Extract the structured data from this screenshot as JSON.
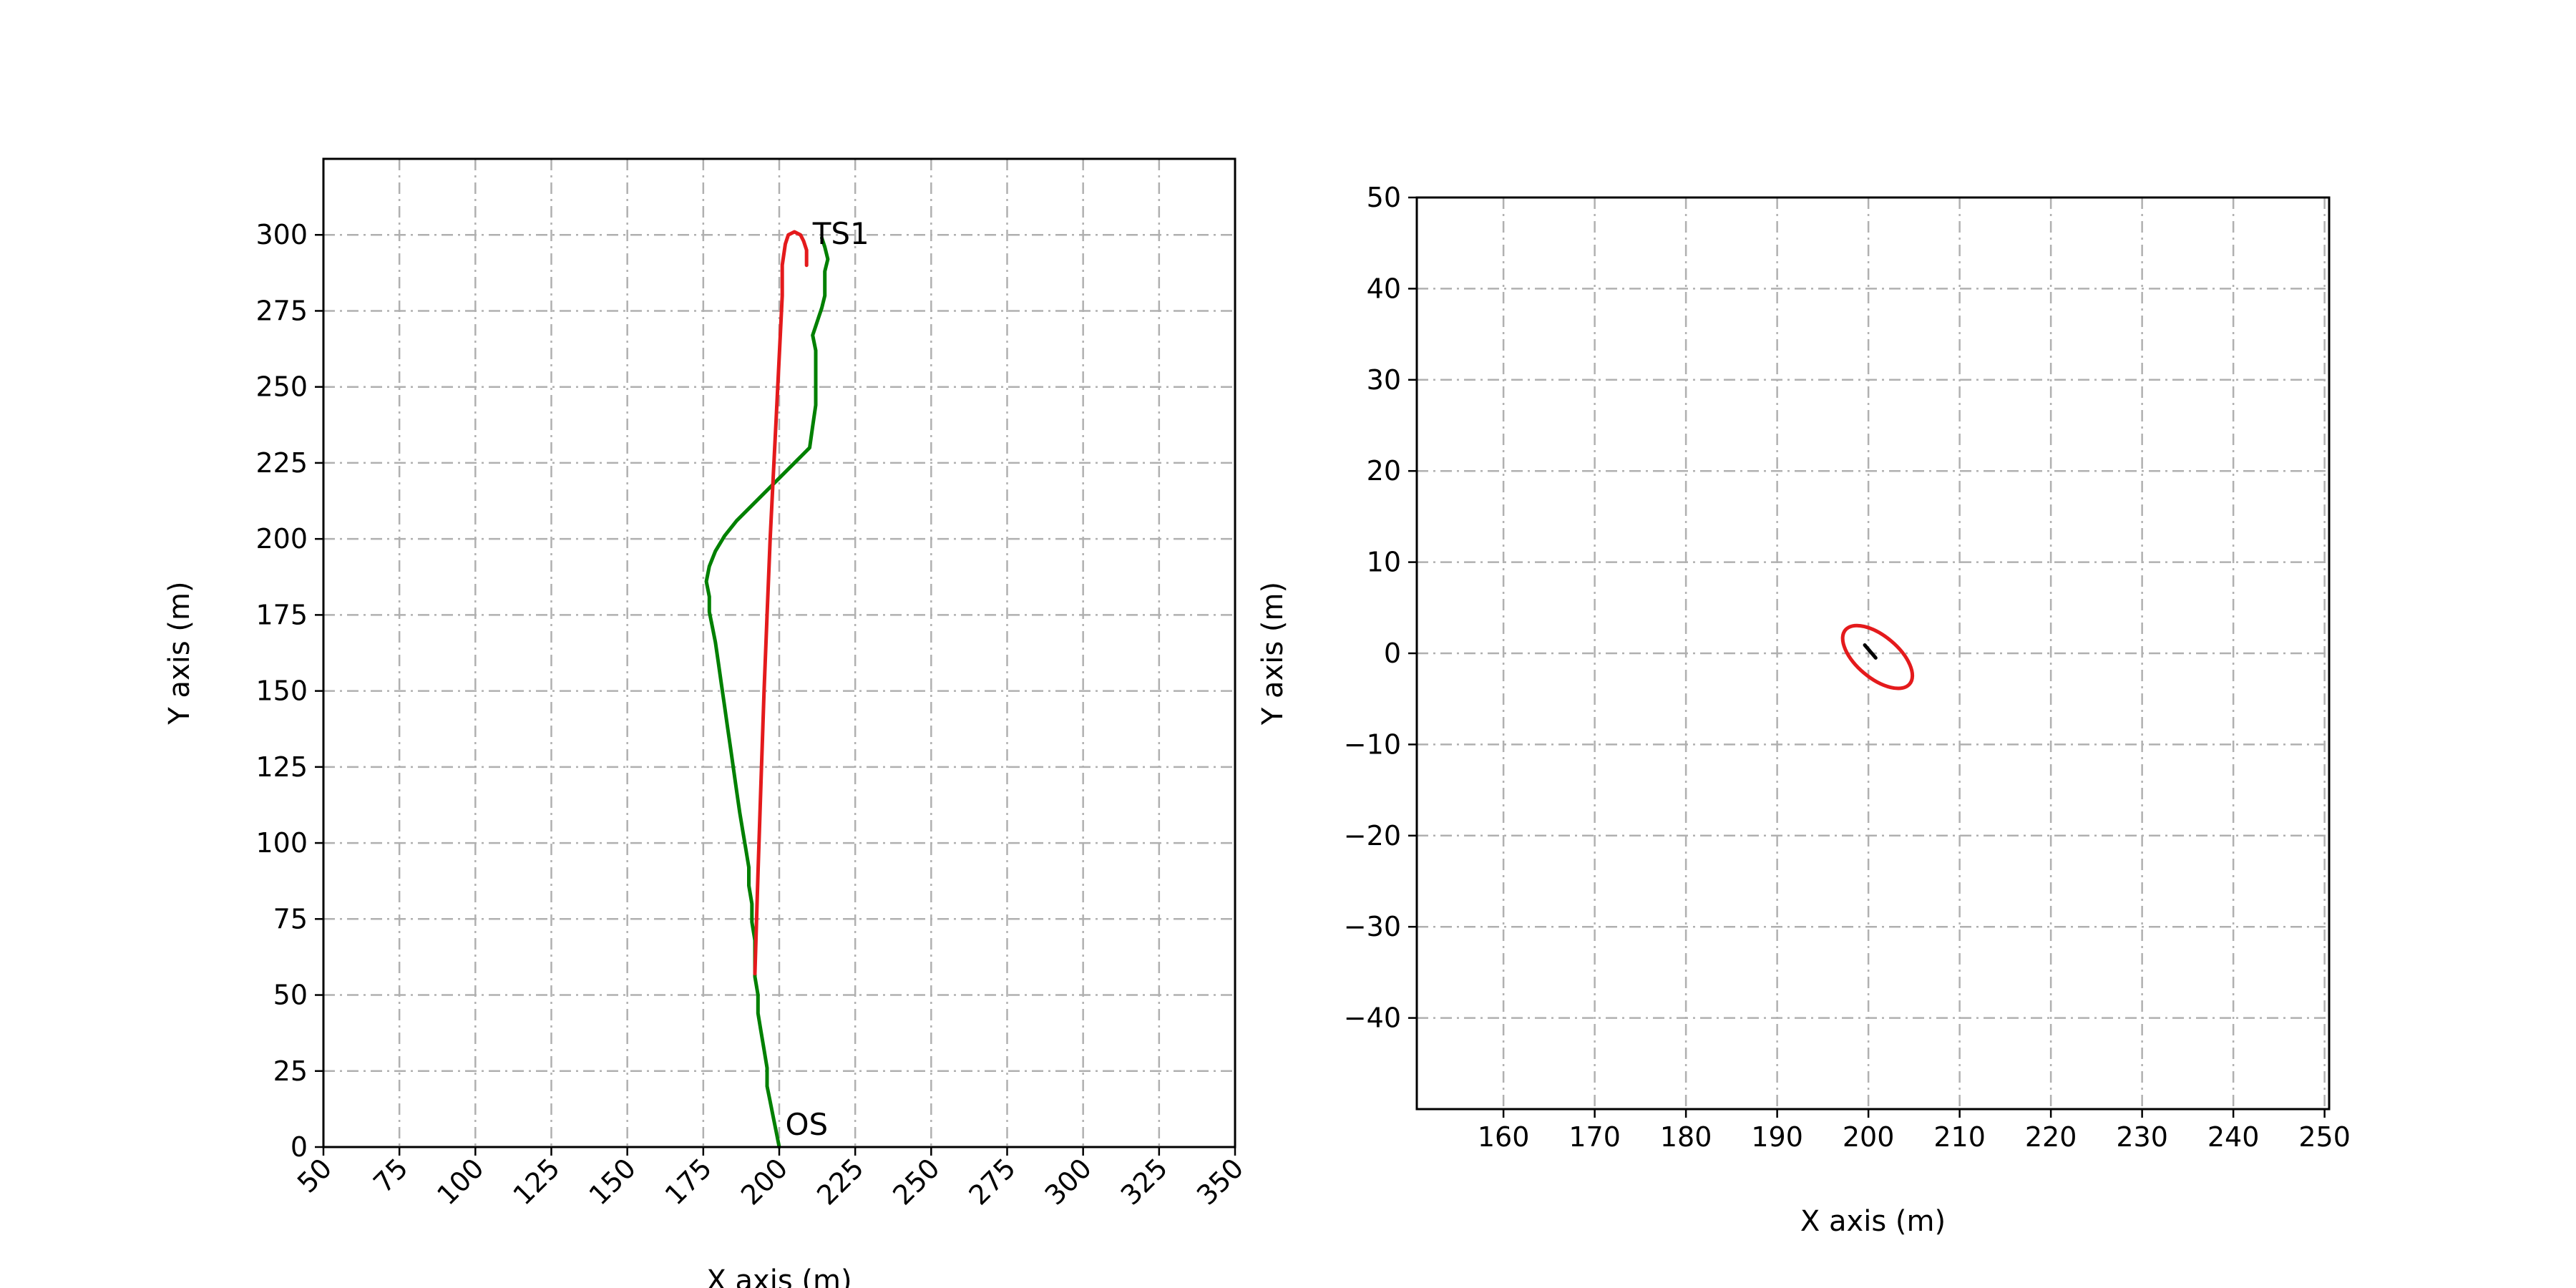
{
  "chart_data": [
    {
      "type": "line",
      "xlabel": "X axis (m)",
      "ylabel": "Y axis (m)",
      "xlim": [
        50,
        350
      ],
      "ylim": [
        0,
        325
      ],
      "xticks": [
        50,
        75,
        100,
        125,
        150,
        175,
        200,
        225,
        250,
        275,
        300,
        325,
        350
      ],
      "yticks": [
        0,
        25,
        50,
        75,
        100,
        125,
        150,
        175,
        200,
        225,
        250,
        275,
        300
      ],
      "xtick_rotation": 45,
      "grid": true,
      "grid_style": "dash-dot",
      "colors": {
        "green_track": "#008000",
        "red_track": "#e41a1c",
        "grid": "#b0b0b0"
      },
      "annotations": [
        {
          "text": "TS1",
          "x": 211,
          "y": 297
        },
        {
          "text": "OS",
          "x": 202,
          "y": 4
        }
      ],
      "series": [
        {
          "color": "#008000",
          "x": [
            200,
            199,
            198,
            197,
            196,
            196,
            195,
            194,
            193,
            193,
            192,
            192,
            192,
            191,
            191,
            190,
            190,
            189,
            188,
            187,
            186,
            185,
            184,
            183,
            182,
            181,
            180,
            179,
            178,
            177,
            177,
            176,
            177,
            179,
            182,
            186,
            190,
            194,
            198,
            202,
            206,
            210,
            211,
            212,
            212,
            212,
            212,
            211,
            212,
            213,
            214,
            215,
            215,
            215,
            216,
            215,
            214
          ],
          "y": [
            0,
            5,
            10,
            15,
            20,
            26,
            32,
            38,
            44,
            50,
            56,
            62,
            68,
            74,
            80,
            86,
            92,
            98,
            104,
            110,
            117,
            124,
            131,
            138,
            145,
            152,
            159,
            166,
            171,
            176,
            181,
            186,
            191,
            196,
            201,
            206,
            210,
            214,
            218,
            222,
            226,
            230,
            237,
            244,
            250,
            256,
            262,
            267,
            270,
            273,
            276,
            280,
            284,
            288,
            292,
            296,
            299
          ]
        },
        {
          "color": "#e41a1c",
          "x": [
            192,
            193,
            194,
            195,
            196,
            197,
            198,
            199,
            200,
            201,
            201,
            202,
            203,
            205,
            207,
            208,
            209,
            209,
            209
          ],
          "y": [
            57,
            90,
            120,
            150,
            175,
            200,
            220,
            240,
            260,
            280,
            290,
            297,
            300,
            301,
            300,
            298,
            295,
            292,
            290
          ]
        }
      ]
    },
    {
      "type": "line",
      "xlabel": "X axis (m)",
      "ylabel": "Y axis (m)",
      "xlim": [
        150.5,
        250.5
      ],
      "ylim": [
        -50,
        50
      ],
      "xticks": [
        160,
        170,
        180,
        190,
        200,
        210,
        220,
        230,
        240,
        250
      ],
      "yticks": [
        -40,
        -30,
        -20,
        -10,
        0,
        10,
        20,
        30,
        40,
        50
      ],
      "grid": true,
      "grid_style": "dash-dot",
      "colors": {
        "ellipse": "#e41a1c",
        "vessel": "#000000",
        "grid": "#b0b0b0"
      },
      "ellipse": {
        "cx": 201,
        "cy": -0.4,
        "semi_major": 4.6,
        "semi_minor": 2.3,
        "angle_deg": -40
      },
      "vessel_marker": {
        "x": [
          199.6,
          200.8
        ],
        "y": [
          0.9,
          -0.5
        ]
      }
    }
  ]
}
